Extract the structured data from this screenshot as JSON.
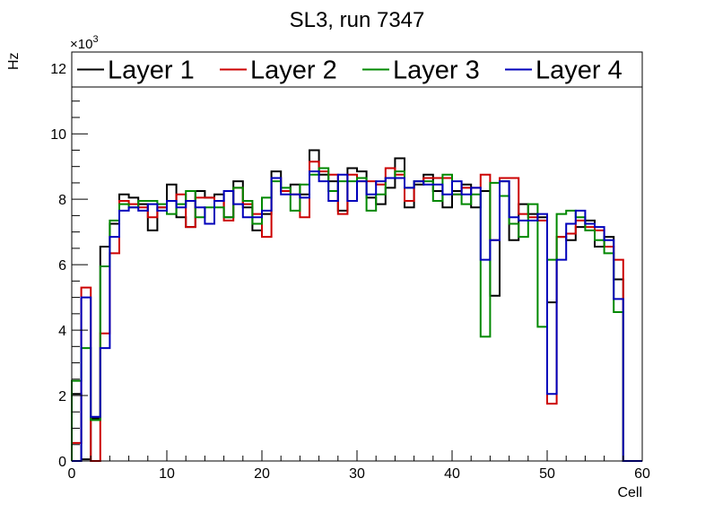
{
  "chart_data": {
    "type": "line",
    "title": "SL3, run 7347",
    "xlabel": "Cell",
    "ylabel": "Hz",
    "y_multiplier_label": "×10",
    "y_multiplier_exponent": "3",
    "xlim": [
      0,
      60
    ],
    "ylim": [
      0,
      12.5
    ],
    "x_ticks": [
      0,
      10,
      20,
      30,
      40,
      50,
      60
    ],
    "y_ticks": [
      0,
      2,
      4,
      6,
      8,
      10,
      12
    ],
    "legend_placement": "top",
    "bin_width": 1,
    "series": [
      {
        "name": "Layer 1",
        "color": "#000000",
        "values": [
          2.05,
          0.05,
          1.3,
          6.55,
          7.25,
          8.15,
          8.05,
          7.85,
          7.05,
          7.75,
          8.45,
          7.45,
          7.15,
          8.25,
          8.05,
          8.15,
          7.45,
          8.55,
          7.75,
          7.05,
          7.55,
          8.85,
          8.25,
          8.45,
          8.15,
          9.5,
          8.75,
          8.55,
          7.65,
          8.95,
          8.85,
          8.05,
          7.85,
          8.35,
          9.25,
          7.75,
          8.45,
          8.75,
          8.25,
          7.75,
          8.25,
          8.45,
          7.75,
          8.25,
          5.05,
          8.55,
          6.75,
          7.85,
          7.55,
          7.45,
          4.85,
          6.85,
          6.75,
          7.15,
          7.35,
          6.55,
          6.85,
          5.55,
          0.0,
          0.0
        ],
        "note": "values are in units of 10^3 Hz per cell bin"
      },
      {
        "name": "Layer 2",
        "color": "#cc0000",
        "values": [
          0.55,
          5.3,
          0.0,
          3.9,
          6.35,
          7.95,
          7.85,
          7.75,
          7.45,
          7.75,
          7.95,
          8.15,
          7.15,
          8.05,
          8.05,
          7.95,
          7.35,
          8.35,
          7.85,
          7.55,
          6.85,
          8.65,
          8.25,
          8.15,
          7.45,
          9.15,
          8.85,
          8.75,
          7.55,
          8.75,
          8.55,
          8.55,
          8.45,
          8.95,
          8.75,
          7.95,
          8.55,
          8.65,
          8.65,
          8.65,
          8.15,
          8.35,
          8.35,
          8.75,
          6.75,
          8.65,
          8.65,
          7.55,
          7.45,
          7.35,
          1.75,
          6.85,
          6.95,
          7.35,
          7.15,
          7.05,
          6.55,
          6.15,
          0.0,
          0.0
        ]
      },
      {
        "name": "Layer 3",
        "color": "#008800",
        "values": [
          2.45,
          3.45,
          1.25,
          5.95,
          7.35,
          7.85,
          7.75,
          7.95,
          7.95,
          7.85,
          7.55,
          7.85,
          8.25,
          7.45,
          7.75,
          7.75,
          7.45,
          8.35,
          7.95,
          7.25,
          8.05,
          8.55,
          8.35,
          7.65,
          8.45,
          8.75,
          8.95,
          8.25,
          8.55,
          8.55,
          8.65,
          7.65,
          8.15,
          8.65,
          8.85,
          8.35,
          8.55,
          8.55,
          7.95,
          8.75,
          8.15,
          7.85,
          8.15,
          3.8,
          8.5,
          8.1,
          7.25,
          6.85,
          7.85,
          4.1,
          6.15,
          7.55,
          7.65,
          7.45,
          7.05,
          6.75,
          6.35,
          4.55,
          0.0,
          0.0
        ]
      },
      {
        "name": "Layer 4",
        "color": "#0000bb",
        "values": [
          0.0,
          5.0,
          1.35,
          3.45,
          6.85,
          7.65,
          7.75,
          7.65,
          7.85,
          7.65,
          7.95,
          7.75,
          7.95,
          7.75,
          7.25,
          7.95,
          8.25,
          7.85,
          7.45,
          7.45,
          7.65,
          8.65,
          8.15,
          8.15,
          8.05,
          8.85,
          8.55,
          7.95,
          8.75,
          7.95,
          8.55,
          8.15,
          8.55,
          8.65,
          8.65,
          8.35,
          8.55,
          8.45,
          8.45,
          8.15,
          8.55,
          8.15,
          8.35,
          6.15,
          6.75,
          8.55,
          7.45,
          7.35,
          7.35,
          7.55,
          2.05,
          6.15,
          7.25,
          7.65,
          7.25,
          7.15,
          6.75,
          4.95,
          0.0,
          0.0
        ]
      }
    ]
  }
}
